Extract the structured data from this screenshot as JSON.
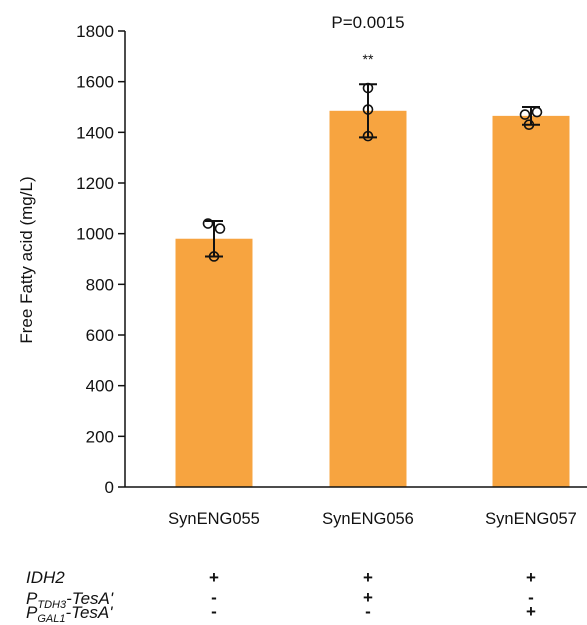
{
  "chart_data": {
    "type": "bar",
    "title": "",
    "ylabel": "Free Fatty acid (mg/L)",
    "xlabel": "",
    "ylim": [
      0,
      1800
    ],
    "yticks": [
      0,
      200,
      400,
      600,
      800,
      1000,
      1200,
      1400,
      1600,
      1800
    ],
    "categories": [
      "SynENG055",
      "SynENG056",
      "SynENG057"
    ],
    "values": [
      980,
      1485,
      1465
    ],
    "errors": [
      70,
      105,
      35
    ],
    "points": [
      [
        1040,
        1020,
        910
      ],
      [
        1575,
        1490,
        1385
      ],
      [
        1470,
        1480,
        1430
      ]
    ],
    "bar_color": "#F7A440",
    "annotations": [
      {
        "text": "P=0.0015",
        "category": "SynENG056"
      },
      {
        "text": "**",
        "category": "SynENG056"
      }
    ],
    "genotype_table": {
      "rows": [
        {
          "gene": "IDH2",
          "prefix": "",
          "sub": "",
          "suffix": "",
          "values": [
            "+",
            "+",
            "+"
          ]
        },
        {
          "gene": "",
          "prefix": "P",
          "sub": "TDH3",
          "suffix": "-TesA'",
          "values": [
            "-",
            "+",
            "-"
          ]
        },
        {
          "gene": "",
          "prefix": "P",
          "sub": "GAL1",
          "suffix": "-TesA'",
          "values": [
            "-",
            "-",
            "+"
          ]
        }
      ]
    }
  }
}
